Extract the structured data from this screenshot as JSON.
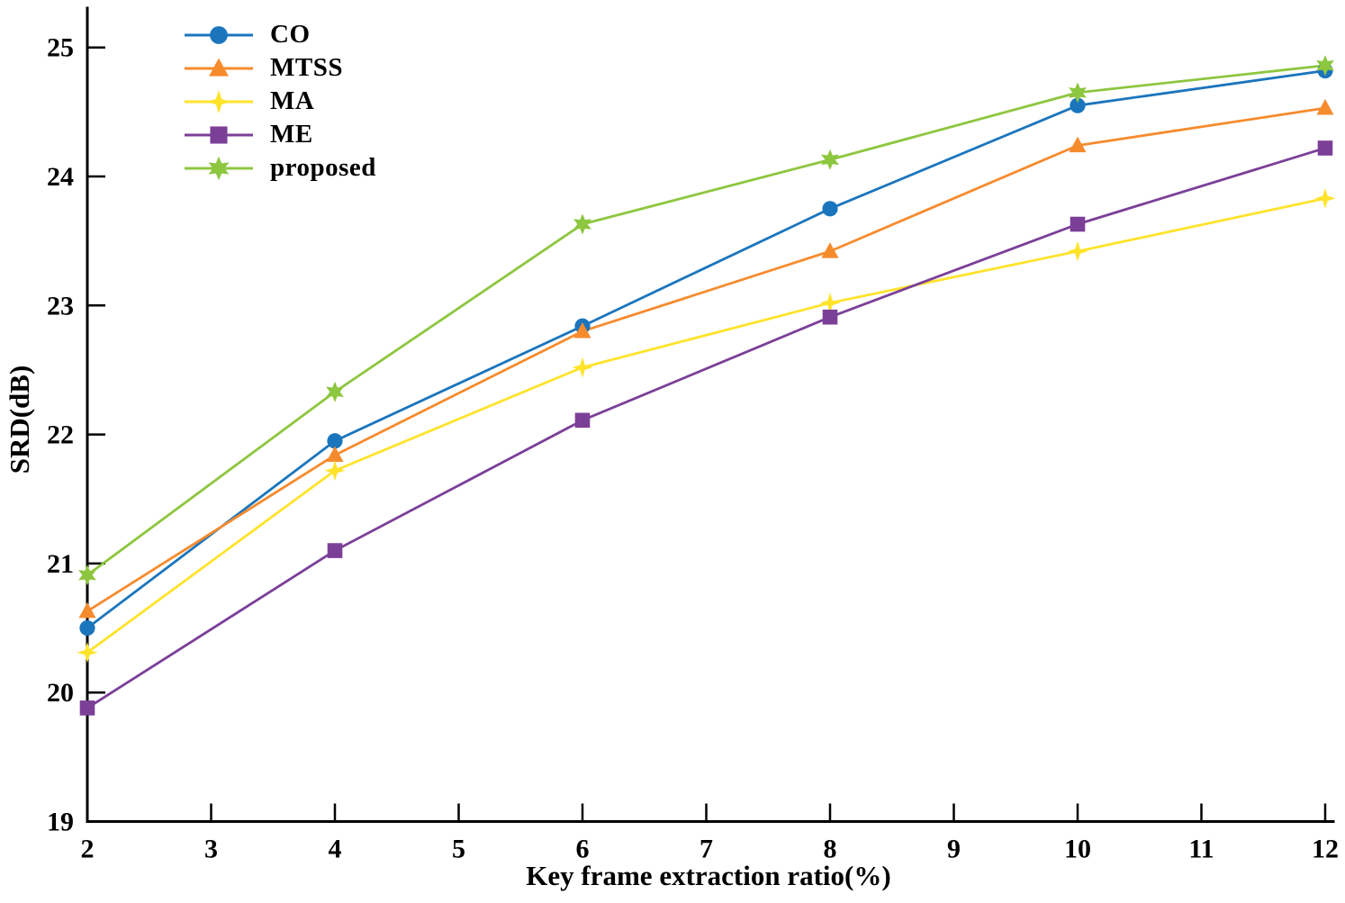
{
  "chart_data": {
    "type": "line",
    "title": "",
    "xlabel": "Key frame extraction ratio(%)",
    "ylabel": "SRD(dB)",
    "x": [
      2,
      4,
      6,
      8,
      10,
      12
    ],
    "xticks": [
      2,
      3,
      4,
      5,
      6,
      7,
      8,
      9,
      10,
      11,
      12
    ],
    "yticks": [
      19,
      20,
      21,
      22,
      23,
      24,
      25
    ],
    "xlim": [
      2,
      12
    ],
    "ylim": [
      19,
      25.3
    ],
    "grid": false,
    "legend_position": "top-left",
    "axis_color": "#000000",
    "series": [
      {
        "name": "CO",
        "color": "#1b75bc",
        "marker": "circle",
        "values": [
          20.5,
          21.95,
          22.84,
          23.75,
          24.55,
          24.82
        ]
      },
      {
        "name": "MTSS",
        "color": "#f68b2e",
        "marker": "triangle",
        "values": [
          20.63,
          21.84,
          22.8,
          23.42,
          24.24,
          24.53
        ]
      },
      {
        "name": "MA",
        "color": "#ffe32b",
        "marker": "star4",
        "values": [
          20.31,
          21.72,
          22.52,
          23.02,
          23.42,
          23.83
        ]
      },
      {
        "name": "ME",
        "color": "#7b3f98",
        "marker": "square",
        "values": [
          19.88,
          21.1,
          22.11,
          22.91,
          23.63,
          24.22
        ]
      },
      {
        "name": "proposed",
        "color": "#8dc63f",
        "marker": "hexagram",
        "values": [
          20.91,
          22.33,
          23.63,
          24.13,
          24.65,
          24.86
        ]
      }
    ]
  }
}
